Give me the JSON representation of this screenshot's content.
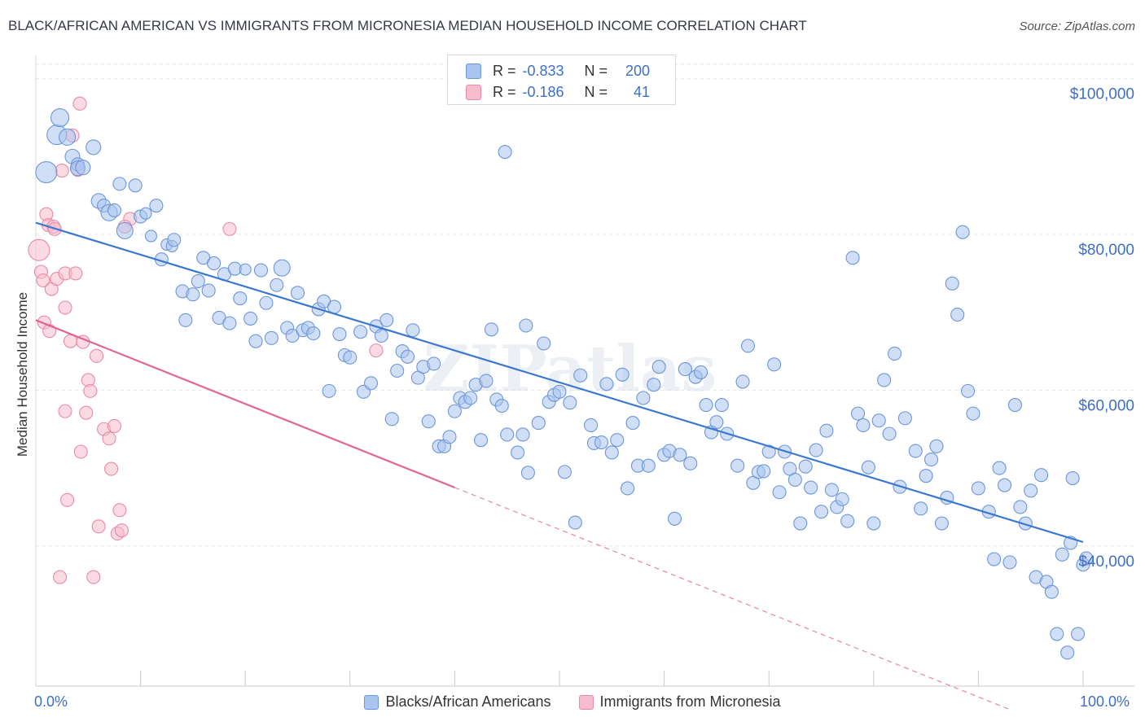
{
  "title": "BLACK/AFRICAN AMERICAN VS IMMIGRANTS FROM MICRONESIA MEDIAN HOUSEHOLD INCOME CORRELATION CHART",
  "source": "Source: ZipAtlas.com",
  "watermark": "ZIPatlas",
  "legend": {
    "rows": [
      {
        "r_label": "R =",
        "r_value": "-0.833",
        "n_label": "N =",
        "n_value": "200",
        "color": "#a9c4ef",
        "stroke": "#6d96d8"
      },
      {
        "r_label": "R =",
        "r_value": "-0.186",
        "n_label": "N =",
        "n_value": "41",
        "color": "#f7bccd",
        "stroke": "#e88aa6"
      }
    ]
  },
  "chart_data": {
    "type": "scatter",
    "title": "BLACK/AFRICAN AMERICAN VS IMMIGRANTS FROM MICRONESIA MEDIAN HOUSEHOLD INCOME CORRELATION CHART",
    "xlabel": "",
    "ylabel": "Median Household Income",
    "xlim": [
      0,
      100
    ],
    "ylim": [
      22000,
      103000
    ],
    "x_tick_labels": {
      "left": "0.0%",
      "right": "100.0%"
    },
    "y_ticks": [
      {
        "value": 40000,
        "label": "$40,000"
      },
      {
        "value": 60000,
        "label": "$60,000"
      },
      {
        "value": 80000,
        "label": "$80,000"
      },
      {
        "value": 100000,
        "label": "$100,000"
      }
    ],
    "grid": true,
    "series": [
      {
        "name": "Blacks/African Americans",
        "color": "#a9c4ef",
        "stroke": "#6d96d8",
        "trend": {
          "x": [
            0,
            100
          ],
          "y": [
            81500,
            40500
          ],
          "color": "#3b78d0"
        },
        "points": [
          [
            1,
            88000,
            13
          ],
          [
            2,
            92800,
            12
          ],
          [
            2.3,
            95000,
            11
          ],
          [
            3,
            92500,
            10
          ],
          [
            3.5,
            90000,
            9
          ],
          [
            4,
            89000,
            8
          ],
          [
            4,
            88500,
            9
          ],
          [
            4.5,
            88600,
            9
          ],
          [
            5.5,
            91200,
            9
          ],
          [
            6,
            84300,
            9
          ],
          [
            6.5,
            83700,
            8
          ],
          [
            7,
            82800,
            10
          ],
          [
            7.5,
            83100,
            8
          ],
          [
            8,
            86500,
            8
          ],
          [
            8.5,
            80500,
            10
          ],
          [
            9.5,
            86300,
            8
          ],
          [
            10,
            82300,
            8
          ],
          [
            10.5,
            82700,
            7
          ],
          [
            11,
            79800,
            7
          ],
          [
            11.5,
            83700,
            8
          ],
          [
            12,
            76800,
            8
          ],
          [
            12.5,
            78700,
            7
          ],
          [
            13,
            78500,
            7
          ],
          [
            13.2,
            79300,
            8
          ],
          [
            14,
            72700,
            8
          ],
          [
            14.3,
            69000,
            8
          ],
          [
            15,
            72300,
            8
          ],
          [
            15.5,
            74000,
            8
          ],
          [
            16,
            77000,
            8
          ],
          [
            16.5,
            72800,
            8
          ],
          [
            17,
            76300,
            8
          ],
          [
            17.5,
            69300,
            8
          ],
          [
            18,
            74900,
            8
          ],
          [
            18.5,
            68600,
            8
          ],
          [
            19,
            75600,
            8
          ],
          [
            19.5,
            71800,
            8
          ],
          [
            20,
            75500,
            7
          ],
          [
            20.5,
            69200,
            8
          ],
          [
            21,
            66300,
            8
          ],
          [
            21.5,
            75400,
            8
          ],
          [
            22,
            71200,
            8
          ],
          [
            22.5,
            66700,
            8
          ],
          [
            23,
            73500,
            8
          ],
          [
            23.5,
            75700,
            10
          ],
          [
            24,
            68000,
            8
          ],
          [
            24.5,
            67000,
            8
          ],
          [
            25,
            72500,
            8
          ],
          [
            25.5,
            67700,
            8
          ],
          [
            26,
            68000,
            8
          ],
          [
            26.5,
            67300,
            8
          ],
          [
            27,
            70400,
            8
          ],
          [
            27.5,
            71400,
            8
          ],
          [
            28,
            59900,
            8
          ],
          [
            28.5,
            70700,
            8
          ],
          [
            29,
            67200,
            8
          ],
          [
            29.5,
            64500,
            8
          ],
          [
            30,
            64200,
            8
          ],
          [
            31,
            67500,
            8
          ],
          [
            31.3,
            59800,
            8
          ],
          [
            32,
            60900,
            8
          ],
          [
            32.5,
            68200,
            8
          ],
          [
            33,
            67000,
            8
          ],
          [
            33.5,
            69000,
            8
          ],
          [
            34,
            56300,
            8
          ],
          [
            34.5,
            62500,
            8
          ],
          [
            35,
            65000,
            8
          ],
          [
            35.5,
            64300,
            8
          ],
          [
            36,
            67700,
            8
          ],
          [
            36.5,
            61600,
            8
          ],
          [
            37,
            63000,
            8
          ],
          [
            37.5,
            56000,
            8
          ],
          [
            38,
            63400,
            8
          ],
          [
            38.5,
            52800,
            8
          ],
          [
            39,
            52800,
            8
          ],
          [
            39.5,
            54000,
            8
          ],
          [
            40,
            57300,
            8
          ],
          [
            40.5,
            59000,
            8
          ],
          [
            41,
            58500,
            8
          ],
          [
            41.5,
            59000,
            8
          ],
          [
            42,
            60700,
            8
          ],
          [
            42.5,
            53600,
            8
          ],
          [
            43,
            61200,
            8
          ],
          [
            43.5,
            67800,
            8
          ],
          [
            44,
            58800,
            8
          ],
          [
            44.5,
            58000,
            8
          ],
          [
            44.8,
            90600,
            8
          ],
          [
            45,
            54300,
            8
          ],
          [
            46,
            52000,
            8
          ],
          [
            46.5,
            54300,
            8
          ],
          [
            46.8,
            68300,
            8
          ],
          [
            47,
            49400,
            8
          ],
          [
            48,
            55800,
            8
          ],
          [
            48.5,
            66000,
            8
          ],
          [
            49,
            58500,
            8
          ],
          [
            49.5,
            59400,
            8
          ],
          [
            50,
            59800,
            8
          ],
          [
            50.5,
            49500,
            8
          ],
          [
            51,
            58400,
            8
          ],
          [
            51.5,
            43000,
            8
          ],
          [
            52,
            61900,
            8
          ],
          [
            53,
            55500,
            8
          ],
          [
            53.3,
            53200,
            8
          ],
          [
            54,
            53300,
            8
          ],
          [
            54.5,
            60800,
            8
          ],
          [
            55,
            52000,
            8
          ],
          [
            55.5,
            53600,
            8
          ],
          [
            56,
            62000,
            8
          ],
          [
            56.5,
            47400,
            8
          ],
          [
            57,
            55800,
            8
          ],
          [
            57.5,
            50300,
            8
          ],
          [
            58,
            59000,
            8
          ],
          [
            58.5,
            50300,
            8
          ],
          [
            59,
            60700,
            8
          ],
          [
            59.5,
            63000,
            8
          ],
          [
            60,
            51700,
            8
          ],
          [
            60.5,
            52200,
            8
          ],
          [
            61,
            43500,
            8
          ],
          [
            61.5,
            51700,
            8
          ],
          [
            62,
            62700,
            8
          ],
          [
            62.5,
            50600,
            8
          ],
          [
            63,
            61700,
            8
          ],
          [
            63.5,
            62300,
            8
          ],
          [
            64,
            58100,
            8
          ],
          [
            64.5,
            54600,
            8
          ],
          [
            65,
            55900,
            8
          ],
          [
            65.5,
            58100,
            8
          ],
          [
            66,
            54400,
            8
          ],
          [
            67,
            50300,
            8
          ],
          [
            67.5,
            61100,
            8
          ],
          [
            68,
            65700,
            8
          ],
          [
            68.5,
            48100,
            8
          ],
          [
            69,
            49500,
            8
          ],
          [
            69.5,
            49600,
            8
          ],
          [
            70,
            52100,
            8
          ],
          [
            70.5,
            63300,
            8
          ],
          [
            71,
            46900,
            8
          ],
          [
            71.5,
            52100,
            8
          ],
          [
            72,
            49900,
            8
          ],
          [
            72.5,
            48500,
            8
          ],
          [
            73,
            42900,
            8
          ],
          [
            73.5,
            50200,
            8
          ],
          [
            74,
            47500,
            8
          ],
          [
            74.5,
            52300,
            8
          ],
          [
            75,
            44400,
            8
          ],
          [
            75.5,
            54800,
            8
          ],
          [
            76,
            47200,
            8
          ],
          [
            76.5,
            45000,
            8
          ],
          [
            77,
            46000,
            8
          ],
          [
            77.5,
            43200,
            8
          ],
          [
            78,
            77000,
            8
          ],
          [
            78.5,
            57000,
            8
          ],
          [
            79,
            55500,
            8
          ],
          [
            79.5,
            50100,
            8
          ],
          [
            80,
            42900,
            8
          ],
          [
            80.5,
            56100,
            8
          ],
          [
            81,
            61300,
            8
          ],
          [
            81.5,
            54400,
            8
          ],
          [
            82,
            64700,
            8
          ],
          [
            82.5,
            47600,
            8
          ],
          [
            83,
            56400,
            8
          ],
          [
            84,
            52200,
            8
          ],
          [
            84.5,
            44800,
            8
          ],
          [
            85,
            49000,
            8
          ],
          [
            85.5,
            51100,
            8
          ],
          [
            86,
            52800,
            8
          ],
          [
            86.5,
            42900,
            8
          ],
          [
            87,
            46200,
            8
          ],
          [
            87.5,
            73700,
            8
          ],
          [
            88,
            69700,
            8
          ],
          [
            88.5,
            80300,
            8
          ],
          [
            89,
            59900,
            8
          ],
          [
            89.5,
            57000,
            8
          ],
          [
            90,
            47400,
            8
          ],
          [
            91,
            44400,
            8
          ],
          [
            91.5,
            38300,
            8
          ],
          [
            92,
            50000,
            8
          ],
          [
            92.5,
            47800,
            8
          ],
          [
            93,
            37900,
            8
          ],
          [
            93.5,
            58100,
            8
          ],
          [
            94,
            45000,
            8
          ],
          [
            94.5,
            42900,
            8
          ],
          [
            95,
            47100,
            8
          ],
          [
            95.5,
            36000,
            8
          ],
          [
            96,
            49100,
            8
          ],
          [
            96.5,
            35400,
            8
          ],
          [
            97,
            34100,
            8
          ],
          [
            97.5,
            28700,
            8
          ],
          [
            98,
            38900,
            8
          ],
          [
            98.5,
            26300,
            8
          ],
          [
            98.8,
            40400,
            8
          ],
          [
            99,
            48700,
            8
          ],
          [
            99.5,
            28700,
            8
          ],
          [
            100,
            37600,
            8
          ],
          [
            100.3,
            38400,
            8
          ]
        ]
      },
      {
        "name": "Immigrants from Micronesia",
        "color": "#f7bccd",
        "stroke": "#e88aa6",
        "trend": {
          "x": [
            0,
            40,
            93
          ],
          "y": [
            69000,
            47500,
            19000
          ],
          "color": "#e0668f",
          "dashed_from": 40
        },
        "points": [
          [
            0.3,
            78000,
            13
          ],
          [
            0.5,
            75200,
            8
          ],
          [
            0.7,
            74100,
            8
          ],
          [
            0.8,
            68700,
            8
          ],
          [
            1,
            82600,
            8
          ],
          [
            1.2,
            81200,
            8
          ],
          [
            1.3,
            67600,
            8
          ],
          [
            1.5,
            73000,
            8
          ],
          [
            1.7,
            81000,
            8
          ],
          [
            1.8,
            80700,
            8
          ],
          [
            2,
            74300,
            8
          ],
          [
            2.3,
            36000,
            8
          ],
          [
            2.5,
            88200,
            8
          ],
          [
            2.8,
            75000,
            8
          ],
          [
            2.8,
            70600,
            8
          ],
          [
            2.8,
            57300,
            8
          ],
          [
            3,
            45900,
            8
          ],
          [
            3.3,
            66300,
            8
          ],
          [
            3.5,
            92700,
            8
          ],
          [
            3.8,
            75000,
            8
          ],
          [
            4,
            88300,
            8
          ],
          [
            4.2,
            96800,
            8
          ],
          [
            4.3,
            52100,
            8
          ],
          [
            4.5,
            66200,
            8
          ],
          [
            4.8,
            57100,
            8
          ],
          [
            5,
            61300,
            8
          ],
          [
            5.2,
            59900,
            8
          ],
          [
            5.5,
            36000,
            8
          ],
          [
            5.8,
            64400,
            8
          ],
          [
            6,
            42500,
            8
          ],
          [
            6.5,
            55000,
            8
          ],
          [
            7,
            53800,
            8
          ],
          [
            7.2,
            49900,
            8
          ],
          [
            7.5,
            55400,
            8
          ],
          [
            7.8,
            41600,
            8
          ],
          [
            8,
            44600,
            8
          ],
          [
            8.2,
            42000,
            8
          ],
          [
            9,
            82000,
            8
          ],
          [
            18.5,
            80700,
            8
          ],
          [
            32.5,
            65100,
            8
          ],
          [
            8.5,
            81000,
            8
          ]
        ]
      }
    ]
  }
}
